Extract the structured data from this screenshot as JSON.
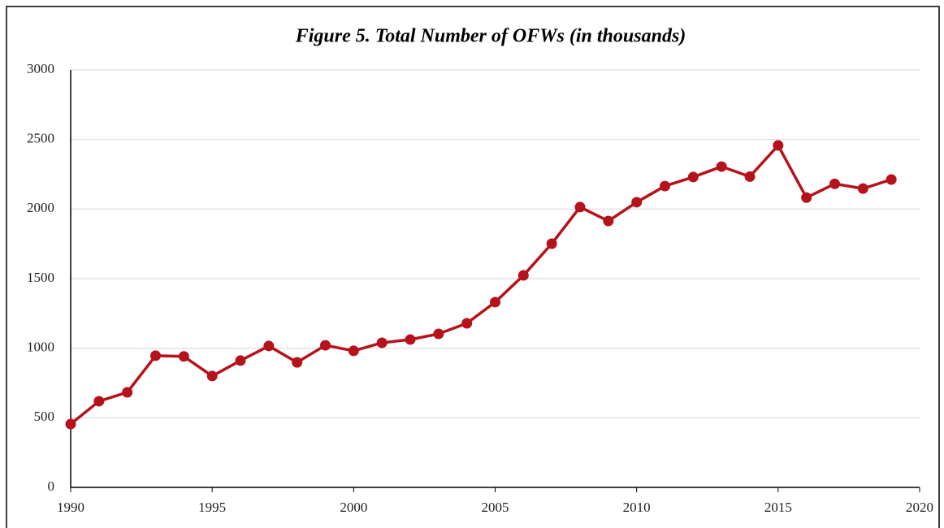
{
  "chart_data": {
    "type": "line",
    "title": "Figure 5. Total Number of OFWs (in thousands)",
    "x": [
      1990,
      1991,
      1992,
      1993,
      1994,
      1995,
      1996,
      1997,
      1998,
      1999,
      2000,
      2001,
      2002,
      2003,
      2004,
      2005,
      2006,
      2007,
      2008,
      2009,
      2010,
      2011,
      2012,
      2013,
      2014,
      2015,
      2016,
      2017,
      2018,
      2019
    ],
    "series": [
      {
        "name": "Total Number of OFWs",
        "color": "#b5121b",
        "values": [
          455,
          619,
          683,
          946,
          941,
          800,
          911,
          1016,
          898,
          1021,
          981,
          1039,
          1062,
          1103,
          1179,
          1331,
          1523,
          1751,
          2014,
          1914,
          2049,
          2165,
          2230,
          2305,
          2233,
          2457,
          2082,
          2181,
          2147,
          2212
        ]
      }
    ],
    "xlim": [
      1990,
      2020
    ],
    "xticks": [
      1990,
      1995,
      2000,
      2005,
      2010,
      2015,
      2020
    ],
    "ylim": [
      0,
      3000
    ],
    "yticks": [
      0,
      500,
      1000,
      1500,
      2000,
      2500,
      3000
    ],
    "grid": true
  }
}
